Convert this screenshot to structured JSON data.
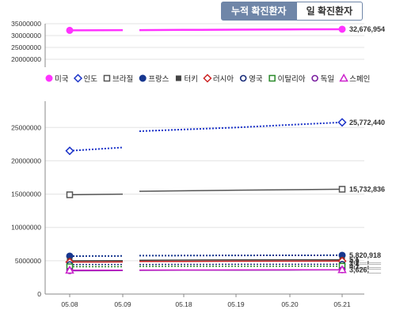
{
  "tabs": [
    {
      "label": "누적 확진환자",
      "active": true
    },
    {
      "label": "일 확진환자",
      "active": false
    }
  ],
  "chart_data": {
    "type": "line",
    "categories": [
      "05.08",
      "05.09",
      "05.18",
      "05.19",
      "05.20",
      "05.21"
    ],
    "legend_position": "middle",
    "grid": true,
    "panels": [
      {
        "ylim": [
          0,
          35000000
        ],
        "yticks": [
          0,
          5000000,
          10000000,
          15000000,
          20000000,
          25000000,
          30000000,
          35000000
        ]
      },
      {
        "ylim": [
          0,
          35000000
        ],
        "yticks": [
          0,
          5000000,
          10000000,
          15000000,
          20000000,
          25000000,
          30000000,
          35000000
        ]
      }
    ],
    "series": [
      {
        "name": "미국",
        "panel": 0,
        "color": "#ff33ff",
        "marker": "circle-filled",
        "dash": "solid",
        "width": 2.5,
        "values": [
          32200000,
          32300000,
          32400000,
          32500000,
          32600000,
          32676954
        ],
        "label": "32,676,954"
      },
      {
        "name": "인도",
        "panel": 1,
        "color": "#1a32c8",
        "marker": "diamond-open",
        "dash": "dotted",
        "width": 2,
        "values": [
          21500000,
          22000000,
          24700000,
          25000000,
          25400000,
          25772440
        ],
        "label": "25,772,440"
      },
      {
        "name": "브라질",
        "panel": 1,
        "color": "#555555",
        "marker": "square-open",
        "dash": "solid",
        "width": 1.5,
        "values": [
          14900000,
          15000000,
          15500000,
          15590000,
          15660000,
          15732836
        ],
        "label": "15,732,836"
      },
      {
        "name": "프랑스",
        "panel": 1,
        "color": "#17378f",
        "marker": "circle-filled",
        "dash": "dotted",
        "width": 2,
        "values": [
          5700000,
          5720000,
          5780000,
          5800000,
          5810000,
          5820918
        ],
        "label": "5,820,918"
      },
      {
        "name": "터키",
        "panel": 1,
        "color": "#444444",
        "marker": "square-filled",
        "dash": "solid",
        "width": 1.5,
        "values": [
          5000000,
          5020000,
          5100000,
          5130000,
          5150000,
          5150000
        ],
        "label": "5,1__,___"
      },
      {
        "name": "러시아",
        "panel": 1,
        "color": "#cc2222",
        "marker": "diamond-open",
        "dash": "solid",
        "width": 1.5,
        "values": [
          4800000,
          4820000,
          4900000,
          4920000,
          4940000,
          4950000
        ],
        "label": "4,9__,___"
      },
      {
        "name": "영국",
        "panel": 1,
        "color": "#1a2d7a",
        "marker": "circle-open",
        "dash": "dotted",
        "width": 1.5,
        "values": [
          4430000,
          4440000,
          4450000,
          4460000,
          4465000,
          4470000
        ],
        "label": "4,4__,___"
      },
      {
        "name": "이탈리아",
        "panel": 1,
        "color": "#2a8a2a",
        "marker": "square-open",
        "dash": "dotted",
        "width": 1.5,
        "values": [
          4100000,
          4110000,
          4160000,
          4170000,
          4180000,
          4180000
        ],
        "label": "4,1__,___"
      },
      {
        "name": "독일",
        "panel": 1,
        "color": "#7a1fa0",
        "marker": "circle-open",
        "dash": "solid",
        "width": 1.5,
        "values": [
          3500000,
          3520000,
          3580000,
          3600000,
          3610000,
          3626000
        ],
        "label": "3,626,___"
      },
      {
        "name": "스페인",
        "panel": 1,
        "color": "#cc22cc",
        "marker": "triangle-open",
        "dash": "solid",
        "width": 1.5,
        "values": [
          3580000,
          3590000,
          3620000,
          3630000,
          3640000,
          3650000
        ],
        "label": ""
      }
    ]
  }
}
